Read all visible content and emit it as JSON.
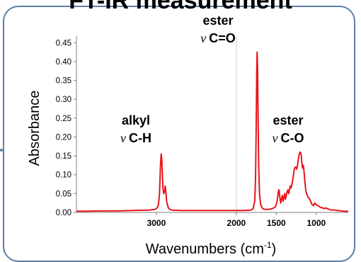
{
  "slide": {
    "title": "FT-IR measurement"
  },
  "colors": {
    "spectrum": "#e8141c",
    "axis": "#7f7f7f",
    "frame": "#5c7fa8",
    "divider": "#cccccc"
  },
  "chart_data": {
    "type": "line",
    "title": "",
    "xlabel": "Wavenumbers (cm⁻¹)",
    "xlabel_main": "Wavenumbers (cm",
    "xlabel_sup": "-1",
    "xlabel_tail": ")",
    "ylabel": "Absorbance",
    "x_reversed": true,
    "xlim": [
      4000,
      600
    ],
    "ylim": [
      0,
      0.46
    ],
    "x_ticks": [
      3000,
      2000,
      1500,
      1000
    ],
    "y_ticks": [
      "0.00",
      "0.05",
      "0.10",
      "0.15",
      "0.20",
      "0.25",
      "0.30",
      "0.35",
      "0.40",
      "0.45"
    ],
    "grid": false,
    "legend": "none",
    "series": [
      {
        "x": [
          4000,
          3700,
          3500,
          3300,
          3100,
          3020,
          2990,
          2975,
          2962,
          2955,
          2948,
          2940,
          2932,
          2925,
          2918,
          2908,
          2898,
          2890,
          2880,
          2872,
          2862,
          2850,
          2830,
          2800,
          2700,
          2500,
          2300,
          2100,
          2000,
          1900,
          1820,
          1790,
          1770,
          1760,
          1752,
          1745,
          1740,
          1735,
          1728,
          1720,
          1710,
          1695,
          1670,
          1640,
          1600,
          1550,
          1510,
          1490,
          1475,
          1466,
          1455,
          1445,
          1435,
          1425,
          1415,
          1405,
          1395,
          1385,
          1375,
          1365,
          1355,
          1345,
          1335,
          1325,
          1315,
          1305,
          1295,
          1285,
          1275,
          1265,
          1255,
          1245,
          1235,
          1225,
          1215,
          1205,
          1197,
          1190,
          1180,
          1172,
          1162,
          1152,
          1142,
          1132,
          1122,
          1112,
          1102,
          1092,
          1082,
          1072,
          1062,
          1050,
          1035,
          1020,
          1000,
          980,
          960,
          940,
          920,
          900,
          880,
          860,
          840,
          820,
          800,
          780,
          760,
          740,
          720,
          700,
          680,
          650,
          620,
          600
        ],
        "y": [
          0.003,
          0.004,
          0.004,
          0.005,
          0.006,
          0.008,
          0.012,
          0.02,
          0.045,
          0.085,
          0.13,
          0.155,
          0.14,
          0.1,
          0.065,
          0.05,
          0.055,
          0.07,
          0.05,
          0.03,
          0.02,
          0.012,
          0.008,
          0.006,
          0.005,
          0.005,
          0.005,
          0.005,
          0.005,
          0.005,
          0.006,
          0.01,
          0.03,
          0.09,
          0.22,
          0.37,
          0.425,
          0.39,
          0.26,
          0.12,
          0.05,
          0.02,
          0.01,
          0.008,
          0.008,
          0.01,
          0.015,
          0.03,
          0.055,
          0.06,
          0.04,
          0.025,
          0.035,
          0.045,
          0.03,
          0.04,
          0.05,
          0.035,
          0.045,
          0.055,
          0.06,
          0.05,
          0.06,
          0.07,
          0.065,
          0.075,
          0.085,
          0.1,
          0.115,
          0.12,
          0.12,
          0.115,
          0.125,
          0.14,
          0.152,
          0.16,
          0.158,
          0.155,
          0.13,
          0.118,
          0.125,
          0.105,
          0.08,
          0.06,
          0.05,
          0.045,
          0.04,
          0.038,
          0.035,
          0.03,
          0.025,
          0.02,
          0.018,
          0.025,
          0.02,
          0.018,
          0.015,
          0.013,
          0.012,
          0.01,
          0.012,
          0.01,
          0.008,
          0.007,
          0.006,
          0.007,
          0.006,
          0.005,
          0.005,
          0.004,
          0.004,
          0.003,
          0.003,
          0.003
        ]
      }
    ],
    "annotations": [
      {
        "top": "ester",
        "nu": "ν",
        "bond": "C=O",
        "x": 1745,
        "y": 0.43
      },
      {
        "top": "alkyl",
        "nu": "ν",
        "bond": "C-H",
        "x": 2990,
        "y": 0.185
      },
      {
        "top": "ester",
        "nu": "ν",
        "bond": "C-O",
        "x": 1205,
        "y": 0.185
      }
    ]
  }
}
